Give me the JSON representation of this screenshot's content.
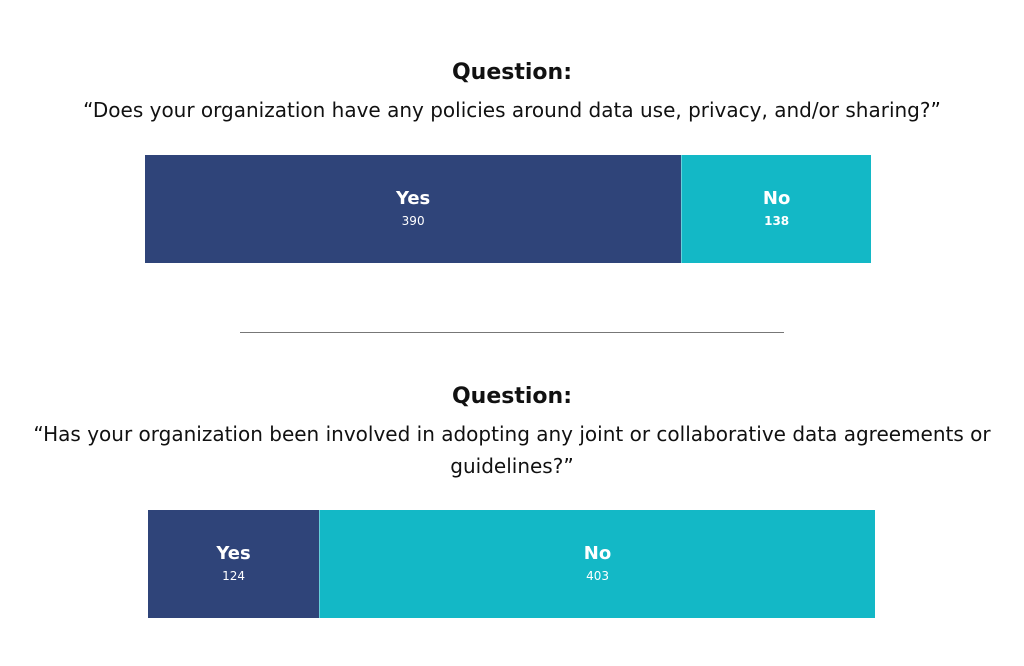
{
  "colors": {
    "yes": "#2f4479",
    "no": "#13b8c6"
  },
  "chart_data": [
    {
      "type": "bar",
      "title": "Question:",
      "subtitle": "“Does your organization have any policies around data use, privacy, and/or sharing?”",
      "categories": [
        "Yes",
        "No"
      ],
      "values": [
        390,
        138
      ],
      "display_values": [
        "390",
        "138"
      ],
      "stacked": true,
      "orientation": "horizontal"
    },
    {
      "type": "bar",
      "title": "Question:",
      "subtitle": "“Has your organization been involved in adopting any joint or collaborative data agreements or guidelines?”",
      "categories": [
        "Yes",
        "No"
      ],
      "values": [
        124,
        403
      ],
      "display_values": [
        "124",
        "403"
      ],
      "stacked": true,
      "orientation": "horizontal"
    }
  ]
}
